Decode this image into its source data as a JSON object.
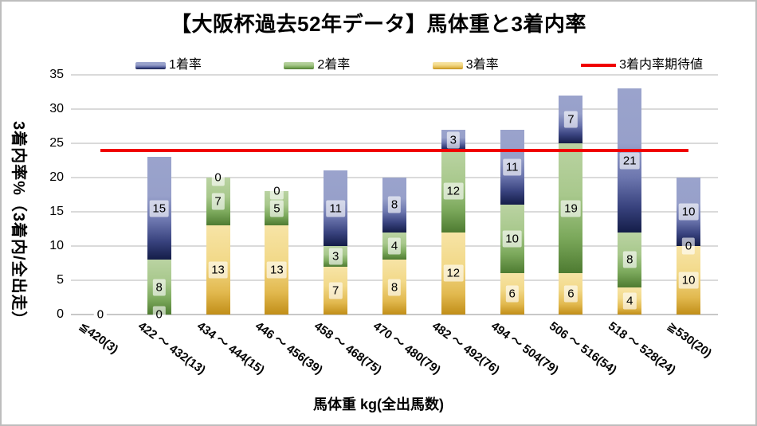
{
  "chart_data": {
    "type": "bar",
    "stacked": true,
    "title": "【大阪杯過去52年データ】馬体重と3着内率",
    "xlabel": "馬体重 kg(全出馬数)",
    "ylabel": "3着内率%（3着内/全出走）",
    "ylim": [
      0,
      35
    ],
    "ytick_interval": 5,
    "yticks": [
      0,
      5,
      10,
      15,
      20,
      25,
      30,
      35
    ],
    "grid": true,
    "legend_position": "top",
    "categories": [
      "≦420(3)",
      "422 ～ 432(13)",
      "434 ～ 444(15)",
      "446 ～ 456(39)",
      "458 ～ 468(75)",
      "470 ～ 480(79)",
      "482 ～ 492(76)",
      "494 ～ 504(79)",
      "506 ～ 516(54)",
      "518 ～ 528(24)",
      "≧530(20)"
    ],
    "stack_order_bottom_to_top": [
      "3着率",
      "2着率",
      "1着率"
    ],
    "series": [
      {
        "name": "1着率",
        "key": "first-place-rate",
        "color": "#8d96c5",
        "color_dark": "#1c2553",
        "values": [
          0,
          15,
          0,
          0,
          11,
          8,
          3,
          11,
          7,
          21,
          10
        ]
      },
      {
        "name": "2着率",
        "key": "second-place-rate",
        "color": "#8fb970",
        "color_dark": "#4e7b31",
        "values": [
          0,
          8,
          7,
          5,
          3,
          4,
          12,
          10,
          19,
          8,
          0
        ]
      },
      {
        "name": "3着率",
        "key": "third-place-rate",
        "color": "#ecd07e",
        "color_dark": "#c2901a",
        "values": [
          0,
          0,
          13,
          13,
          7,
          8,
          12,
          6,
          6,
          4,
          10
        ]
      }
    ],
    "reference_line": {
      "name": "3着内率期待値",
      "key": "expected-top3-rate",
      "value": 24,
      "color": "#f00000"
    },
    "data_labels_visible": true
  }
}
